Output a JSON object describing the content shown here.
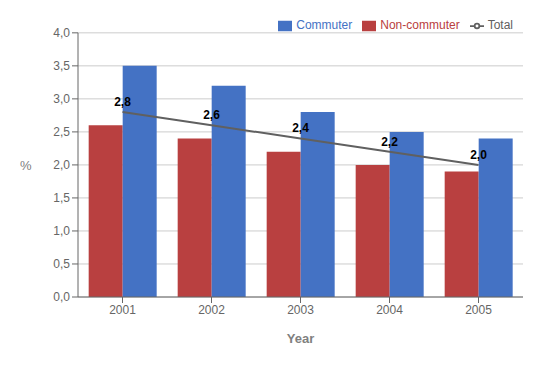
{
  "chart_data": {
    "type": "bar",
    "categories": [
      "2001",
      "2002",
      "2003",
      "2004",
      "2005"
    ],
    "series": [
      {
        "name": "Non-commuter",
        "color": "#B94040",
        "values": [
          2.6,
          2.4,
          2.2,
          2.0,
          1.9
        ]
      },
      {
        "name": "Commuter",
        "color": "#4472C4",
        "values": [
          3.5,
          3.2,
          2.8,
          2.5,
          2.4
        ]
      },
      {
        "name": "Total",
        "type": "line",
        "color": "#606060",
        "values": [
          2.8,
          2.6,
          2.4,
          2.2,
          2.0
        ],
        "data_labels": true,
        "value_labels": [
          "2,8",
          "2,6",
          "2,4",
          "2,2",
          "2,0"
        ]
      }
    ],
    "xlabel": "Year",
    "ylabel": "%",
    "ylim": [
      0,
      4.0
    ],
    "yticks": [
      {
        "value": 0.0,
        "label": "0,0"
      },
      {
        "value": 0.5,
        "label": "0,5"
      },
      {
        "value": 1.0,
        "label": "1,0"
      },
      {
        "value": 1.5,
        "label": "1,5"
      },
      {
        "value": 2.0,
        "label": "2,0"
      },
      {
        "value": 2.5,
        "label": "2,5"
      },
      {
        "value": 3.0,
        "label": "3,0"
      },
      {
        "value": 3.5,
        "label": "3,5"
      },
      {
        "value": 4.0,
        "label": "4,0"
      }
    ],
    "grid": true,
    "legend": "upper right"
  }
}
